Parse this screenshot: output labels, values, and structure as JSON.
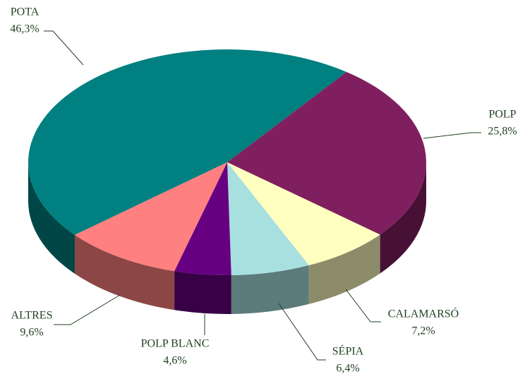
{
  "chart_data": {
    "type": "pie",
    "categories": [
      "POTA",
      "POLP",
      "CALAMARSÓ",
      "SÉPIA",
      "POLP BLANC",
      "ALTRES"
    ],
    "values": [
      46.3,
      25.8,
      7.2,
      6.4,
      4.6,
      9.6
    ],
    "value_labels": [
      "46,3%",
      "25,8%",
      "7,2%",
      "6,4%",
      "4,6%",
      "9,6%"
    ],
    "colors": [
      "#008080",
      "#801f5f",
      "#ffffc0",
      "#a8e0e0",
      "#660080",
      "#ff8080"
    ]
  }
}
